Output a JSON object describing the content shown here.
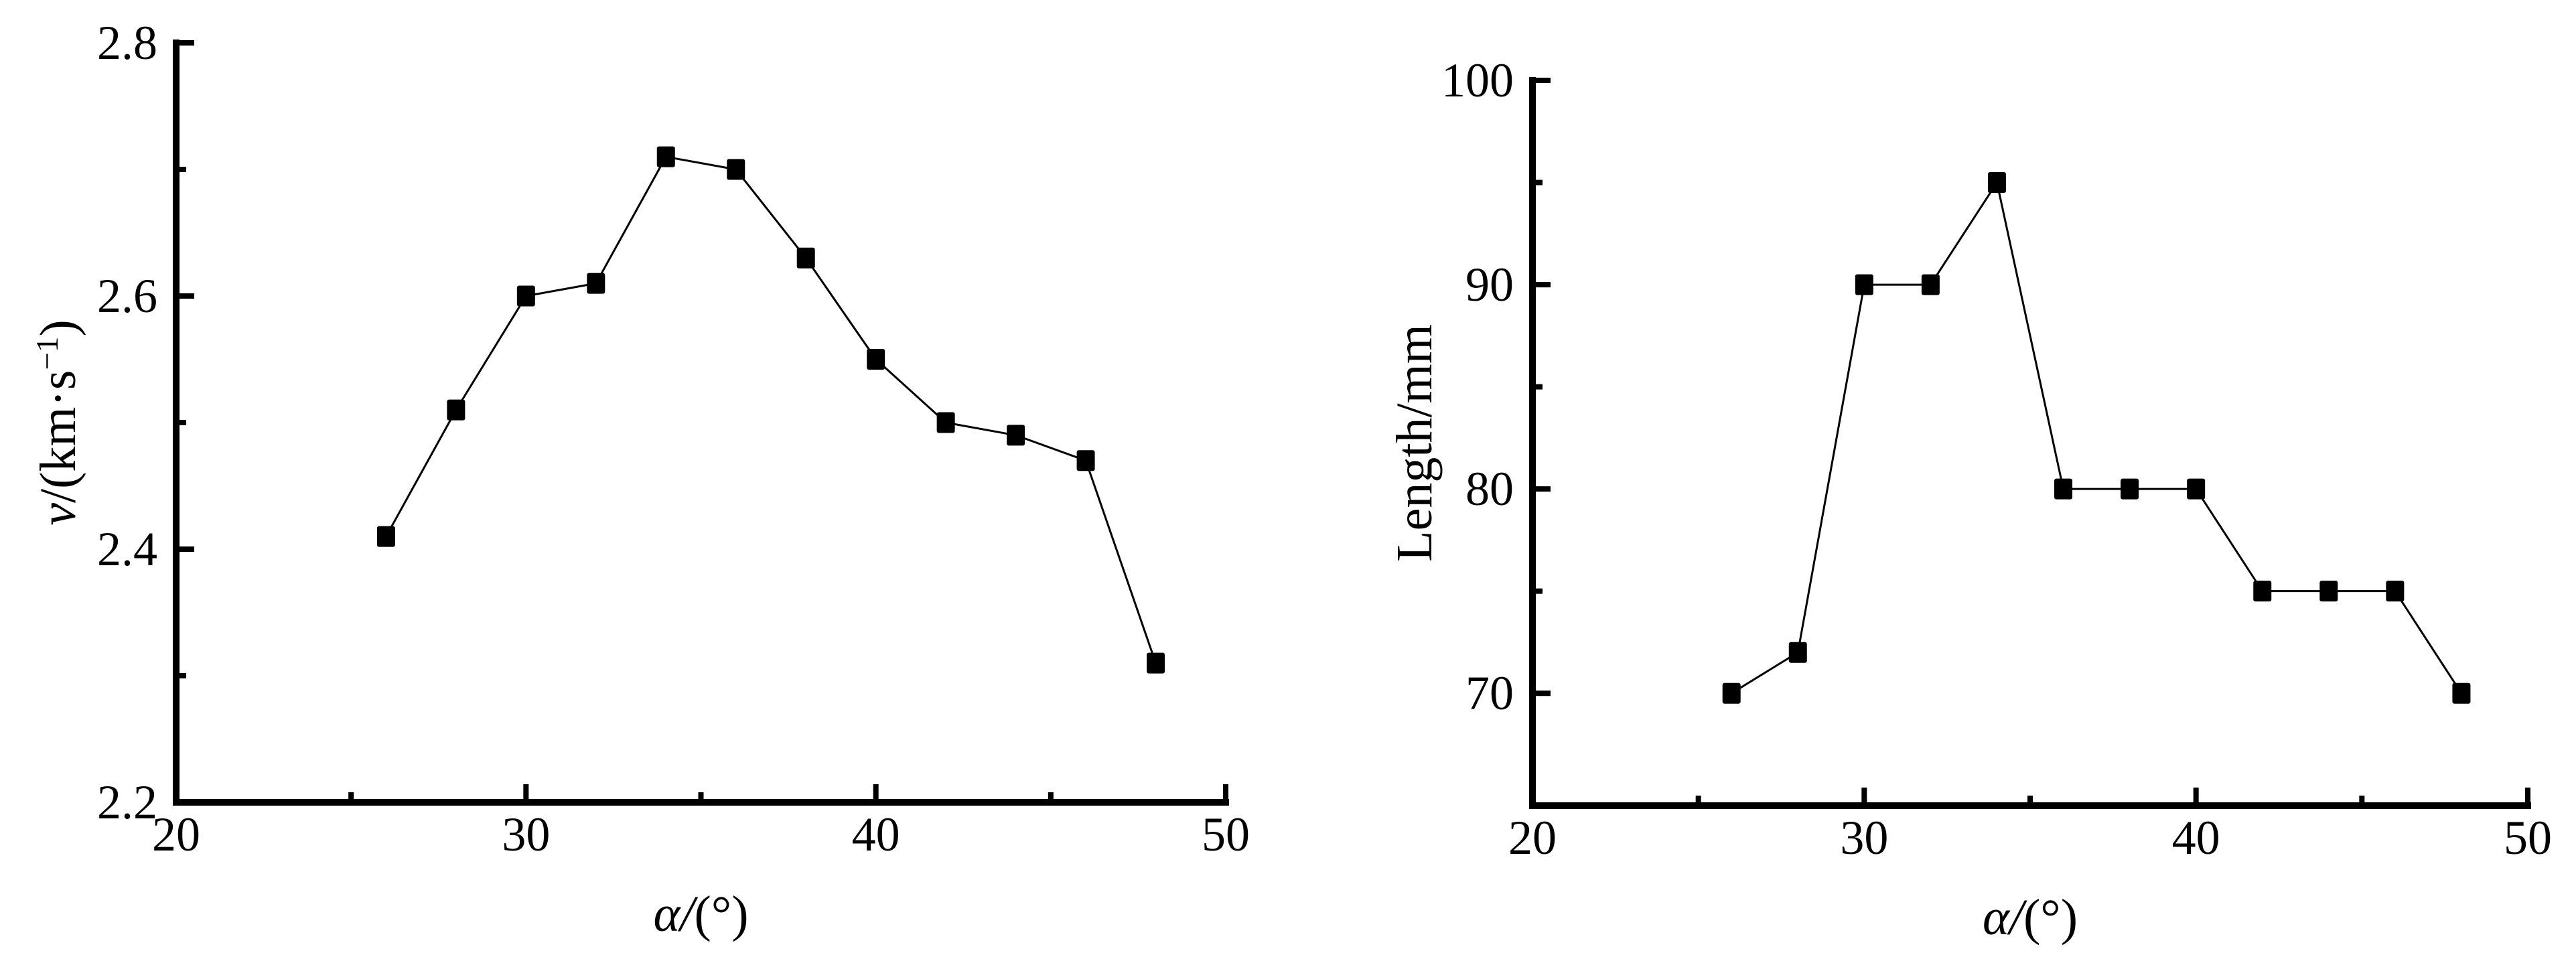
{
  "page": {
    "background": "#ffffff",
    "ink_color": "#000000",
    "description": "Two black-and-white scatter-line plots side by side"
  },
  "chart_data": [
    {
      "id": "velocity-vs-angle",
      "type": "line",
      "x": [
        26,
        28,
        30,
        32,
        34,
        36,
        38,
        40,
        42,
        44,
        46,
        48
      ],
      "y": [
        2.41,
        2.51,
        2.6,
        2.61,
        2.71,
        2.7,
        2.63,
        2.55,
        2.5,
        2.49,
        2.47,
        2.31
      ],
      "title": "",
      "xlabel": "α/(°)",
      "ylabel": "v/(km·s⁻¹)",
      "xlabel_parts": [
        {
          "text": "α/",
          "italic": true
        },
        {
          "text": "(°)",
          "italic": false
        }
      ],
      "ylabel_parts": [
        {
          "text": "v",
          "italic": true
        },
        {
          "text": "/(km·s",
          "italic": false
        },
        {
          "text": "−1",
          "italic": false,
          "sup": true
        },
        {
          "text": ")",
          "italic": false
        }
      ],
      "xlim": [
        20,
        50
      ],
      "ylim": [
        2.2,
        2.8
      ],
      "x_major_ticks": [
        20,
        30,
        40,
        50
      ],
      "x_tick_labels": [
        "20",
        "30",
        "40",
        "50"
      ],
      "x_minor_ticks": [
        25,
        35,
        45
      ],
      "y_major_ticks": [
        2.2,
        2.4,
        2.6,
        2.8
      ],
      "y_tick_labels": [
        "2.2",
        "2.4",
        "2.6",
        "2.8"
      ],
      "y_minor_ticks": [
        2.3,
        2.5,
        2.7
      ],
      "marker": "filled-square",
      "line_style": "solid",
      "color": "#000000",
      "grid": false,
      "legend": "none"
    },
    {
      "id": "length-vs-angle",
      "type": "line",
      "x": [
        26,
        28,
        30,
        32,
        34,
        36,
        38,
        40,
        42,
        44,
        46,
        48
      ],
      "y": [
        70,
        72,
        90,
        90,
        95,
        80,
        80,
        80,
        75,
        75,
        75,
        70
      ],
      "title": "",
      "xlabel": "α/(°)",
      "ylabel": "Length/mm",
      "xlabel_parts": [
        {
          "text": "α/",
          "italic": true
        },
        {
          "text": "(°)",
          "italic": false
        }
      ],
      "ylabel_parts": [
        {
          "text": "Length/mm",
          "italic": false
        }
      ],
      "xlim": [
        20,
        50
      ],
      "ylim": [
        64.5,
        100
      ],
      "x_major_ticks": [
        20,
        30,
        40,
        50
      ],
      "x_tick_labels": [
        "20",
        "30",
        "40",
        "50"
      ],
      "x_minor_ticks": [
        25,
        35,
        45
      ],
      "y_major_ticks": [
        70,
        80,
        90,
        100
      ],
      "y_tick_labels": [
        "70",
        "80",
        "90",
        "100"
      ],
      "y_minor_ticks": [
        75,
        85,
        95
      ],
      "marker": "filled-square",
      "line_style": "solid",
      "color": "#000000",
      "grid": false,
      "legend": "none"
    }
  ]
}
